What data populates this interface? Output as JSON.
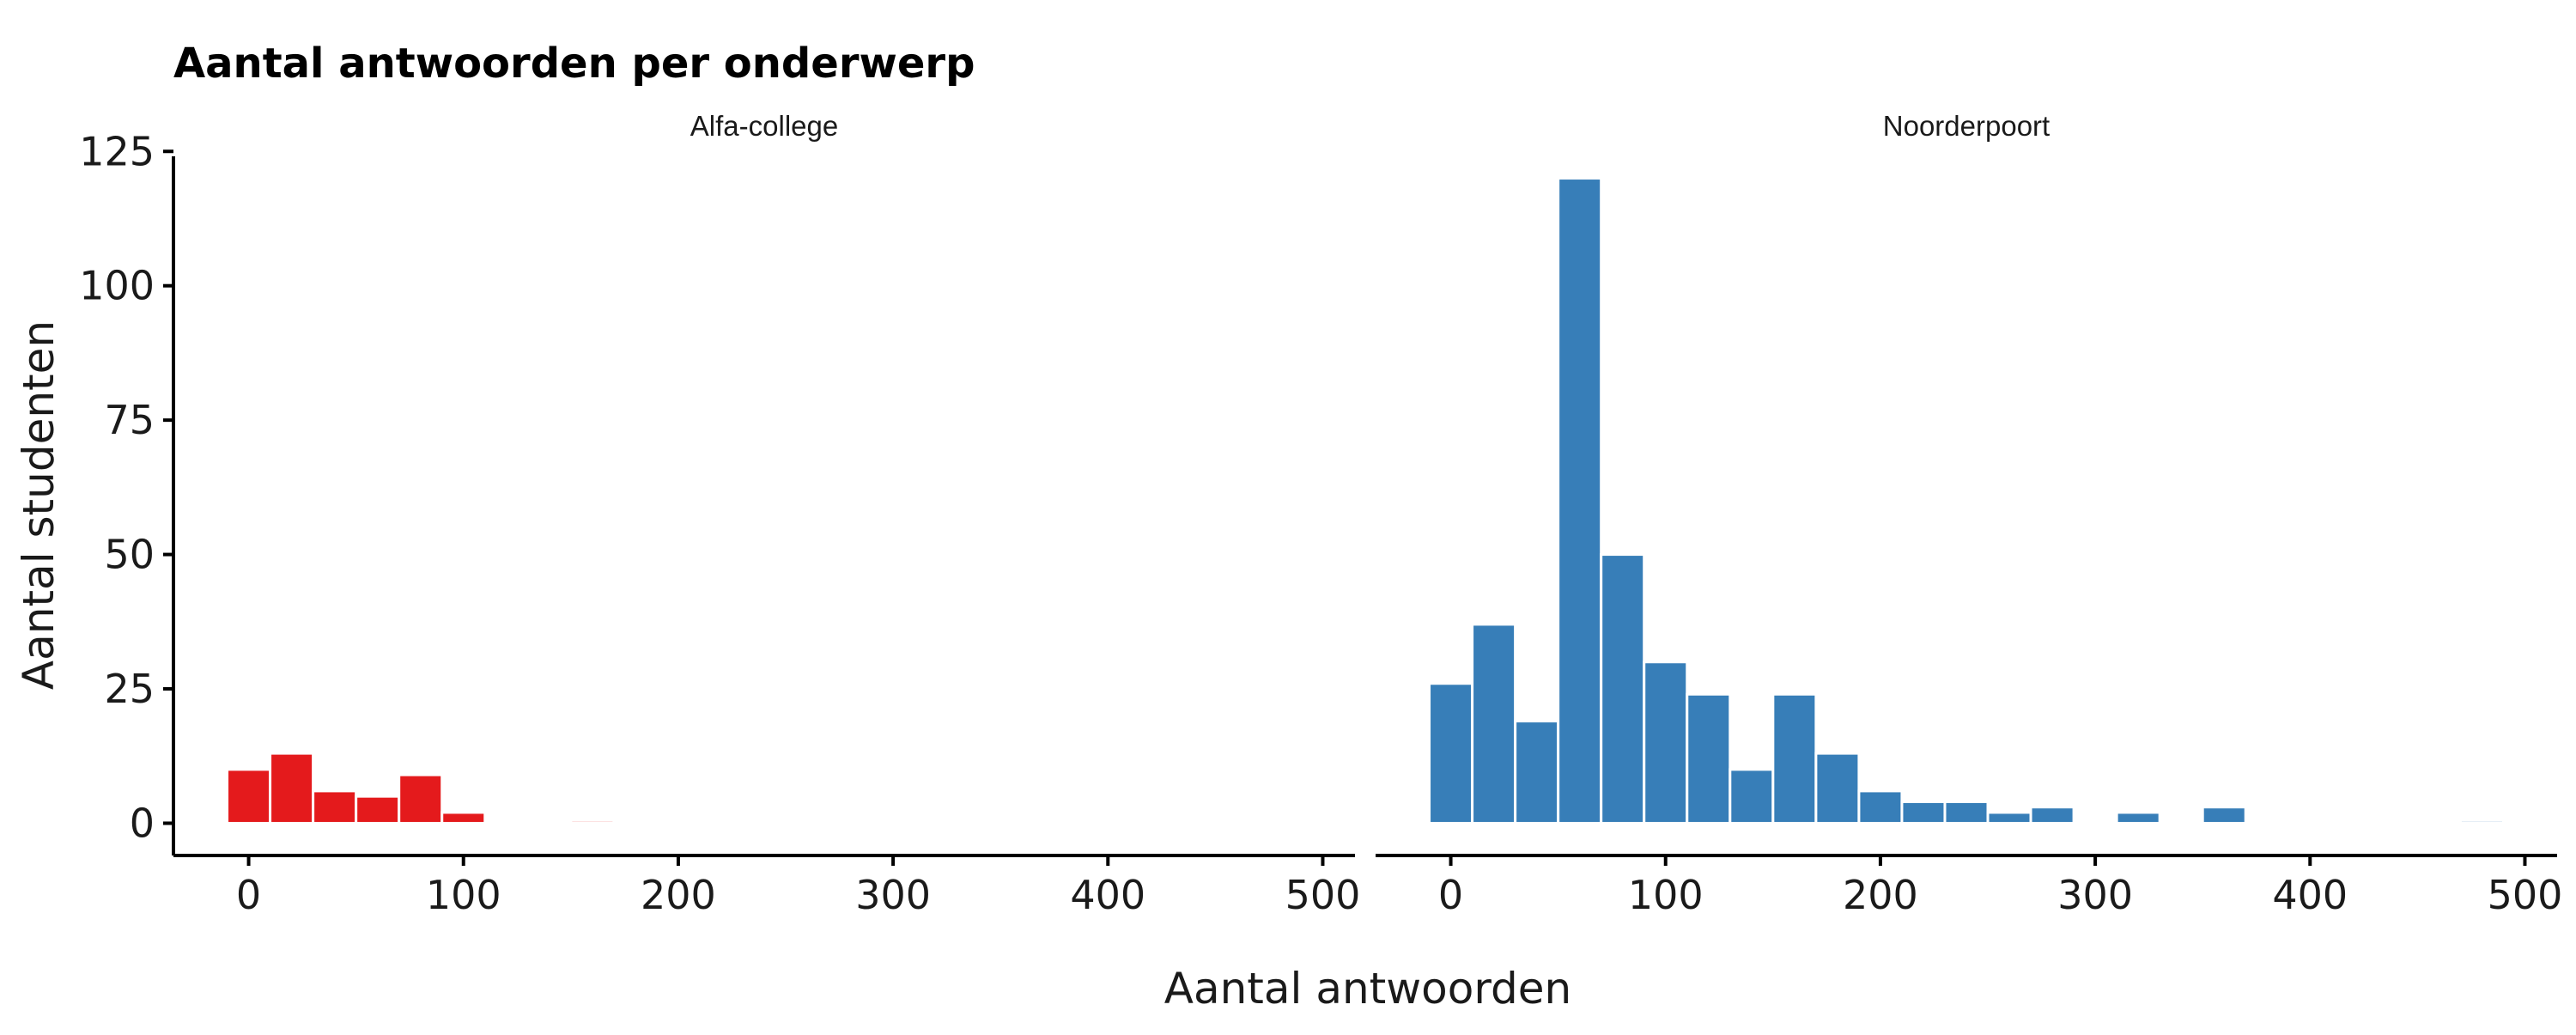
{
  "chart_data": {
    "type": "bar",
    "title": "Aantal antwoorden per onderwerp",
    "xlabel": "Aantal antwoorden",
    "ylabel": "Aantal studenten",
    "xlim": [
      -35,
      515
    ],
    "ylim": [
      -6,
      126
    ],
    "x_ticks": [
      0,
      100,
      200,
      300,
      400,
      500
    ],
    "y_ticks": [
      0,
      25,
      50,
      75,
      100,
      125
    ],
    "bin_width": 20,
    "grid": false,
    "panels": [
      {
        "name": "Alfa-college",
        "color": "#E41A1C",
        "bins": [
          {
            "x": 0,
            "count": 10
          },
          {
            "x": 20,
            "count": 13
          },
          {
            "x": 40,
            "count": 6
          },
          {
            "x": 60,
            "count": 5
          },
          {
            "x": 80,
            "count": 9
          },
          {
            "x": 100,
            "count": 2
          },
          {
            "x": 160,
            "count": 0.5
          }
        ]
      },
      {
        "name": "Noorderpoort",
        "color": "#377EB8",
        "bins": [
          {
            "x": 0,
            "count": 26
          },
          {
            "x": 20,
            "count": 37
          },
          {
            "x": 40,
            "count": 19
          },
          {
            "x": 60,
            "count": 120
          },
          {
            "x": 80,
            "count": 50
          },
          {
            "x": 100,
            "count": 30
          },
          {
            "x": 120,
            "count": 24
          },
          {
            "x": 140,
            "count": 10
          },
          {
            "x": 160,
            "count": 24
          },
          {
            "x": 180,
            "count": 13
          },
          {
            "x": 200,
            "count": 6
          },
          {
            "x": 220,
            "count": 4
          },
          {
            "x": 240,
            "count": 4
          },
          {
            "x": 260,
            "count": 2
          },
          {
            "x": 280,
            "count": 3
          },
          {
            "x": 320,
            "count": 2
          },
          {
            "x": 360,
            "count": 3
          },
          {
            "x": 480,
            "count": 0.5
          }
        ]
      }
    ]
  }
}
